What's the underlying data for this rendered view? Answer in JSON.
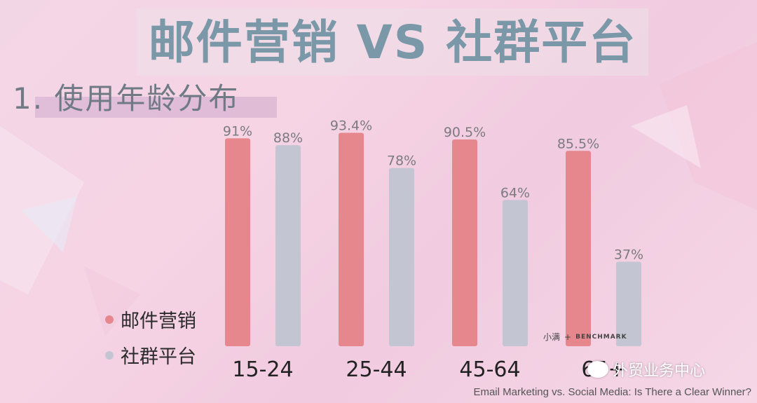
{
  "header": {
    "title": "邮件营销 VS 社群平台",
    "subtitle": "1. 使用年龄分布"
  },
  "chart_data": {
    "type": "bar",
    "categories": [
      "15-24",
      "25-44",
      "45-64",
      "65+"
    ],
    "series": [
      {
        "name": "邮件营销",
        "values": [
          91,
          93.4,
          90.5,
          85.5
        ],
        "labels": [
          "91%",
          "93.4%",
          "90.5%",
          "85.5%"
        ],
        "color": "#e5878d"
      },
      {
        "name": "社群平台",
        "values": [
          88,
          78,
          64,
          37
        ],
        "labels": [
          "88%",
          "78%",
          "64%",
          "37%"
        ],
        "color": "#c3c5d2"
      }
    ],
    "ylim": [
      0,
      100
    ],
    "grid": false,
    "legend": "bottom-left"
  },
  "branding": {
    "logo_text": "小满",
    "logo_plus": "+",
    "logo_partner": "BENCHMARK",
    "watermark": "外贸业务中心"
  },
  "source": "Email Marketing vs. Social Media: Is There a Clear Winner?"
}
